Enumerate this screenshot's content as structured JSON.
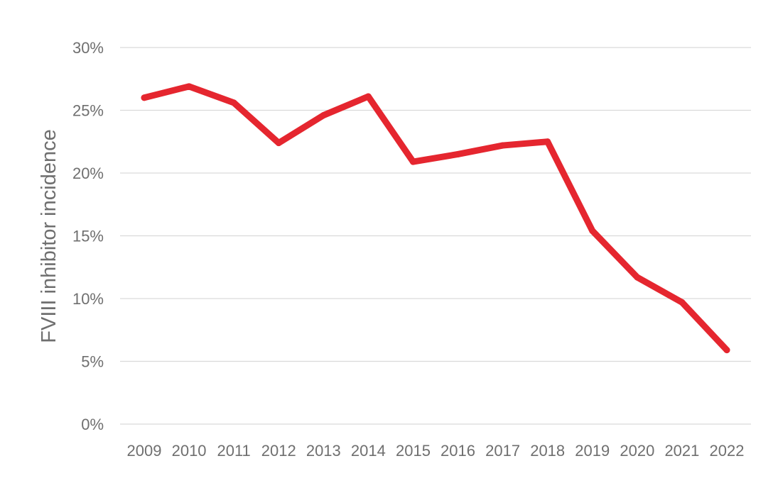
{
  "chart_data": {
    "type": "line",
    "title": "",
    "xlabel": "",
    "ylabel": "FVIII inhibitor incidence",
    "categories": [
      "2009",
      "2010",
      "2011",
      "2012",
      "2013",
      "2014",
      "2015",
      "2016",
      "2017",
      "2018",
      "2019",
      "2020",
      "2021",
      "2022"
    ],
    "series": [
      {
        "values": [
          26.0,
          26.9,
          25.6,
          22.4,
          24.6,
          26.1,
          20.9,
          21.5,
          22.2,
          22.5,
          15.4,
          11.7,
          9.7,
          5.9
        ],
        "color": "#e5262f"
      }
    ],
    "ylim": [
      0,
      30
    ],
    "yticks": [
      0,
      5,
      10,
      15,
      20,
      25,
      30
    ],
    "ytick_labels": [
      "0%",
      "5%",
      "10%",
      "15%",
      "20%",
      "25%",
      "30%"
    ],
    "grid": true,
    "legend": "none"
  }
}
